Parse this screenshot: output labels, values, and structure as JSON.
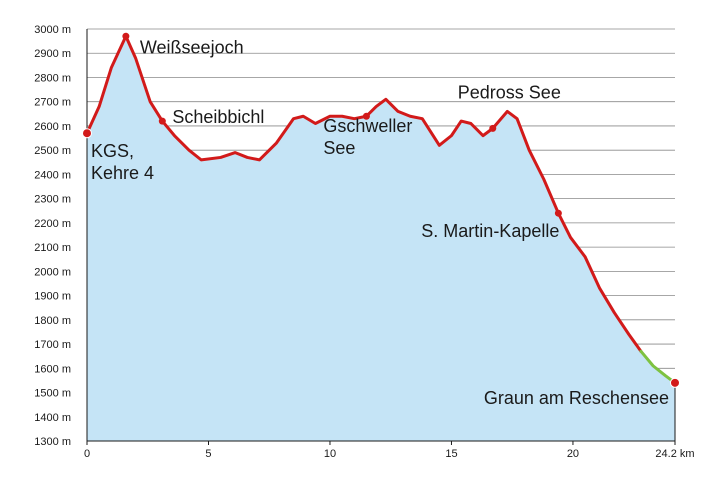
{
  "chart_data": {
    "type": "area",
    "title": "",
    "xlabel": "",
    "ylabel": "",
    "xlim": [
      0,
      24.2
    ],
    "ylim": [
      1300,
      3000
    ],
    "grid": true,
    "x_ticks": [
      0,
      5,
      10,
      15,
      20,
      24.2
    ],
    "x_tick_labels": [
      "0",
      "5",
      "10",
      "15",
      "20",
      "24.2 km"
    ],
    "y_ticks": [
      1300,
      1400,
      1500,
      1600,
      1700,
      1800,
      1900,
      2000,
      2100,
      2200,
      2300,
      2400,
      2500,
      2600,
      2700,
      2800,
      2900,
      3000
    ],
    "y_tick_labels": [
      "1300 m",
      "1400 m",
      "1500 m",
      "1600 m",
      "1700 m",
      "1800 m",
      "1900 m",
      "2000 m",
      "2100 m",
      "2200 m",
      "2300 m",
      "2400 m",
      "2500 m",
      "2600 m",
      "2700 m",
      "2800 m",
      "2900 m",
      "3000 m"
    ],
    "profile": [
      [
        0,
        2570
      ],
      [
        0.5,
        2680
      ],
      [
        1.0,
        2840
      ],
      [
        1.6,
        2970
      ],
      [
        2.0,
        2880
      ],
      [
        2.6,
        2700
      ],
      [
        3.1,
        2620
      ],
      [
        3.6,
        2560
      ],
      [
        4.2,
        2500
      ],
      [
        4.7,
        2460
      ],
      [
        5.5,
        2470
      ],
      [
        6.1,
        2490
      ],
      [
        6.6,
        2470
      ],
      [
        7.1,
        2460
      ],
      [
        7.8,
        2530
      ],
      [
        8.5,
        2630
      ],
      [
        8.9,
        2640
      ],
      [
        9.4,
        2610
      ],
      [
        10.0,
        2640
      ],
      [
        10.5,
        2640
      ],
      [
        11.0,
        2630
      ],
      [
        11.5,
        2640
      ],
      [
        11.9,
        2680
      ],
      [
        12.3,
        2710
      ],
      [
        12.8,
        2660
      ],
      [
        13.3,
        2640
      ],
      [
        13.8,
        2630
      ],
      [
        14.5,
        2520
      ],
      [
        15.0,
        2560
      ],
      [
        15.4,
        2620
      ],
      [
        15.8,
        2610
      ],
      [
        16.3,
        2560
      ],
      [
        16.7,
        2590
      ],
      [
        17.3,
        2660
      ],
      [
        17.7,
        2630
      ],
      [
        18.2,
        2500
      ],
      [
        18.8,
        2380
      ],
      [
        19.4,
        2240
      ],
      [
        19.9,
        2140
      ],
      [
        20.5,
        2060
      ],
      [
        21.1,
        1930
      ],
      [
        21.7,
        1830
      ],
      [
        22.3,
        1740
      ],
      [
        22.8,
        1670
      ],
      [
        23.3,
        1610
      ],
      [
        23.8,
        1570
      ],
      [
        24.2,
        1540
      ]
    ],
    "series": [
      {
        "color": "#d21a1a",
        "x_from": 0,
        "x_to": 22.8
      },
      {
        "color": "#7ec241",
        "x_from": 22.8,
        "x_to": 24.2
      }
    ],
    "waypoints": [
      {
        "label": "KGS,\nKehre 4",
        "x": 0,
        "y": 2570
      },
      {
        "label": "Weißseejoch",
        "x": 1.6,
        "y": 2970
      },
      {
        "label": "Scheibbichl",
        "x": 3.1,
        "y": 2620
      },
      {
        "label": "Gschweller\nSee",
        "x": 11.5,
        "y": 2640
      },
      {
        "label": "Pedross See",
        "x": 16.7,
        "y": 2590
      },
      {
        "label": "S. Martin-Kapelle",
        "x": 19.4,
        "y": 2240
      },
      {
        "label": "Graun am Reschensee",
        "x": 24.2,
        "y": 1540
      }
    ],
    "colors": {
      "fill": "#c5e4f6",
      "grid": "#8a8a8a",
      "axis": "#1a1a1a",
      "marker": "#d21a1a"
    }
  }
}
